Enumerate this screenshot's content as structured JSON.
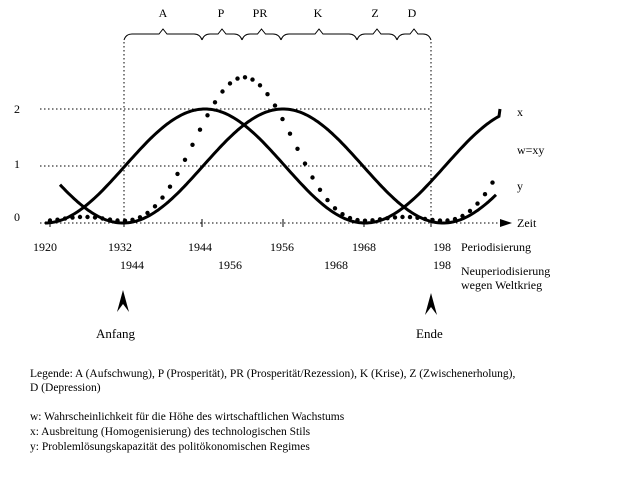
{
  "phases": [
    "A",
    "P",
    "PR",
    "K",
    "Z",
    "D"
  ],
  "y_axis_labels": [
    "2",
    "1",
    "0"
  ],
  "curve_labels": {
    "x": "x",
    "w": "w=xy",
    "y": "y",
    "time": "Zeit"
  },
  "periodization": {
    "label": "Periodisierung",
    "years": [
      "1920",
      "1932",
      "1944",
      "1956",
      "1968",
      "198"
    ]
  },
  "re_periodization": {
    "label_line1": "Neuperiodisierung",
    "label_line2": "wegen Weltkrieg",
    "years": [
      "1944",
      "1956",
      "1968",
      "198"
    ]
  },
  "markers": {
    "start": "Anfang",
    "end": "Ende"
  },
  "legend": {
    "line1": "Legende: A (Aufschwung), P (Prosperität), PR (Prosperität/Rezession), K (Krise), Z  (Zwischenerholung),",
    "line2": "D (Depression)",
    "w": "w: Wahrscheinlichkeit für die Höhe des wirtschaftlichen Wachstums",
    "x": "x:  Ausbreitung (Homogenisierung) des technologischen Stils",
    "y": "y:  Problemlösungskapazität des politökonomischen Regimes"
  },
  "colors": {
    "ink": "#000000",
    "background": "#ffffff"
  }
}
